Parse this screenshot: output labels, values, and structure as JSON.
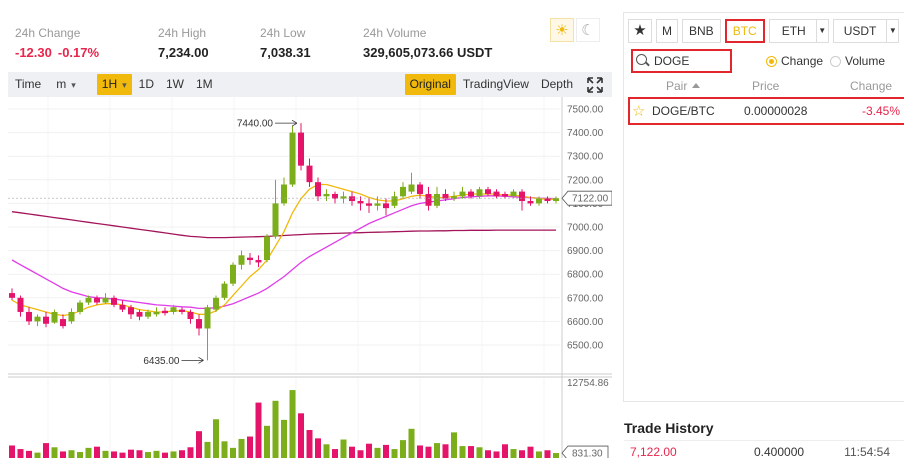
{
  "stats": {
    "change": {
      "label": "24h Change",
      "value": "-12.30",
      "percent": "-0.17%"
    },
    "high": {
      "label": "24h High",
      "value": "7,234.00"
    },
    "low": {
      "label": "24h Low",
      "value": "7,038.31"
    },
    "volume": {
      "label": "24h Volume",
      "value": "329,605,073.66 USDT"
    }
  },
  "theme": {
    "sun_icon": "sun-icon",
    "moon_icon": "moon-icon"
  },
  "toolbar": {
    "time": "Time",
    "minute": "m",
    "hour": "1H",
    "day": "1D",
    "week": "1W",
    "month": "1M",
    "original": "Original",
    "tradingview": "TradingView",
    "depth": "Depth",
    "expand_icon": "expand-icon"
  },
  "chart_data": {
    "type": "candlestick",
    "price_ticks": [
      "7500.00",
      "7400.00",
      "7300.00",
      "7200.00",
      "7100.00",
      "7000.00",
      "6900.00",
      "6800.00",
      "6700.00",
      "6600.00",
      "6500.00"
    ],
    "price_tick_values": [
      7500,
      7400,
      7300,
      7200,
      7100,
      7000,
      6900,
      6800,
      6700,
      6600,
      6500
    ],
    "current_price": "7122.00",
    "current_price_value": 7122,
    "max_marker": "7440.00",
    "max_marker_value": 7440,
    "min_marker": "6435.00",
    "min_marker_value": 6435,
    "volume_ticks": [
      "12754.86"
    ],
    "volume_tick_values": [
      12754.86
    ],
    "volume_current": "831.30",
    "volume_current_value": 831.3,
    "colors": {
      "up": "#7cad1a",
      "down": "#e4146a",
      "ma_fast": "#f0b90b",
      "ma_mid": "#e03ce8",
      "ma_slow": "#a3145a"
    },
    "candles": [
      [
        6720,
        6700,
        6740,
        6690
      ],
      [
        6700,
        6640,
        6710,
        6620
      ],
      [
        6640,
        6600,
        6660,
        6585
      ],
      [
        6600,
        6620,
        6630,
        6580
      ],
      [
        6620,
        6590,
        6640,
        6575
      ],
      [
        6595,
        6640,
        6650,
        6590
      ],
      [
        6610,
        6580,
        6630,
        6570
      ],
      [
        6600,
        6640,
        6655,
        6590
      ],
      [
        6640,
        6680,
        6690,
        6630
      ],
      [
        6680,
        6700,
        6710,
        6670
      ],
      [
        6700,
        6680,
        6710,
        6670
      ],
      [
        6680,
        6700,
        6720,
        6675
      ],
      [
        6700,
        6670,
        6710,
        6660
      ],
      [
        6670,
        6650,
        6690,
        6640
      ],
      [
        6660,
        6630,
        6670,
        6610
      ],
      [
        6640,
        6620,
        6650,
        6605
      ],
      [
        6620,
        6640,
        6650,
        6610
      ],
      [
        6630,
        6640,
        6660,
        6620
      ],
      [
        6645,
        6635,
        6660,
        6625
      ],
      [
        6640,
        6660,
        6670,
        6630
      ],
      [
        6650,
        6640,
        6660,
        6630
      ],
      [
        6640,
        6610,
        6650,
        6590
      ],
      [
        6610,
        6570,
        6630,
        6540
      ],
      [
        6570,
        6660,
        6670,
        6435
      ],
      [
        6650,
        6700,
        6710,
        6640
      ],
      [
        6700,
        6760,
        6770,
        6690
      ],
      [
        6760,
        6840,
        6850,
        6750
      ],
      [
        6840,
        6880,
        6900,
        6820
      ],
      [
        6870,
        6860,
        6890,
        6840
      ],
      [
        6860,
        6850,
        6880,
        6830
      ],
      [
        6860,
        6960,
        6970,
        6850
      ],
      [
        6960,
        7100,
        7200,
        6950
      ],
      [
        7100,
        7180,
        7210,
        7090
      ],
      [
        7180,
        7400,
        7430,
        7170
      ],
      [
        7400,
        7260,
        7440,
        7240
      ],
      [
        7260,
        7190,
        7290,
        7170
      ],
      [
        7190,
        7130,
        7210,
        7110
      ],
      [
        7130,
        7140,
        7160,
        7110
      ],
      [
        7140,
        7120,
        7150,
        7100
      ],
      [
        7120,
        7130,
        7150,
        7100
      ],
      [
        7130,
        7110,
        7150,
        7090
      ],
      [
        7110,
        7100,
        7130,
        7070
      ],
      [
        7100,
        7090,
        7120,
        7060
      ],
      [
        7090,
        7100,
        7130,
        7070
      ],
      [
        7100,
        7080,
        7120,
        7050
      ],
      [
        7090,
        7130,
        7150,
        7080
      ],
      [
        7130,
        7170,
        7190,
        7120
      ],
      [
        7150,
        7180,
        7230,
        7140
      ],
      [
        7180,
        7140,
        7190,
        7120
      ],
      [
        7140,
        7090,
        7170,
        7070
      ],
      [
        7090,
        7140,
        7170,
        7080
      ],
      [
        7140,
        7120,
        7160,
        7110
      ],
      [
        7120,
        7130,
        7150,
        7110
      ],
      [
        7130,
        7150,
        7170,
        7120
      ],
      [
        7150,
        7130,
        7160,
        7120
      ],
      [
        7130,
        7160,
        7170,
        7120
      ],
      [
        7160,
        7140,
        7170,
        7130
      ],
      [
        7150,
        7130,
        7160,
        7120
      ],
      [
        7140,
        7130,
        7150,
        7120
      ],
      [
        7130,
        7150,
        7160,
        7120
      ],
      [
        7150,
        7110,
        7160,
        7070
      ],
      [
        7110,
        7100,
        7130,
        7090
      ],
      [
        7100,
        7120,
        7130,
        7090
      ],
      [
        7120,
        7110,
        7130,
        7100
      ],
      [
        7110,
        7122,
        7130,
        7100
      ]
    ],
    "volumes": [
      2100,
      1500,
      1200,
      900,
      2500,
      1800,
      1100,
      1300,
      1000,
      1700,
      1900,
      1200,
      1100,
      900,
      1400,
      1300,
      1000,
      1200,
      900,
      1100,
      1300,
      1800,
      4500,
      2700,
      6500,
      2800,
      1700,
      3200,
      3600,
      9300,
      5400,
      9600,
      6400,
      11400,
      7500,
      4700,
      3300,
      2300,
      1500,
      3100,
      1900,
      1300,
      2400,
      1700,
      2200,
      1500,
      3000,
      4900,
      2100,
      1900,
      2500,
      2300,
      4300,
      2000,
      2000,
      1800,
      1300,
      1100,
      2300,
      1500,
      1300,
      1900,
      1100,
      1300,
      831
    ],
    "ma_fast": [
      6690,
      6670,
      6660,
      6650,
      6640,
      6630,
      6625,
      6630,
      6645,
      6660,
      6670,
      6675,
      6675,
      6670,
      6660,
      6650,
      6645,
      6640,
      6640,
      6645,
      6645,
      6640,
      6630,
      6630,
      6645,
      6670,
      6710,
      6750,
      6790,
      6820,
      6860,
      6920,
      6980,
      7060,
      7120,
      7160,
      7180,
      7180,
      7170,
      7160,
      7150,
      7140,
      7125,
      7115,
      7110,
      7110,
      7120,
      7130,
      7135,
      7130,
      7125,
      7125,
      7130,
      7135,
      7140,
      7140,
      7140,
      7140,
      7135,
      7135,
      7130,
      7125,
      7120,
      7118,
      7117
    ],
    "ma_mid": [
      6860,
      6840,
      6820,
      6800,
      6780,
      6760,
      6740,
      6725,
      6715,
      6705,
      6700,
      6698,
      6695,
      6690,
      6685,
      6680,
      6675,
      6670,
      6668,
      6665,
      6662,
      6660,
      6655,
      6655,
      6658,
      6665,
      6675,
      6690,
      6705,
      6720,
      6740,
      6765,
      6790,
      6820,
      6850,
      6875,
      6895,
      6915,
      6935,
      6955,
      6975,
      6995,
      7015,
      7030,
      7045,
      7060,
      7075,
      7090,
      7100,
      7105,
      7110,
      7115,
      7120,
      7125,
      7128,
      7130,
      7132,
      7132,
      7130,
      7128,
      7126,
      7124,
      7122,
      7121,
      7120
    ],
    "ma_slow": [
      7065,
      7060,
      7055,
      7050,
      7045,
      7040,
      7035,
      7030,
      7025,
      7020,
      7015,
      7010,
      7005,
      7000,
      6995,
      6990,
      6985,
      6980,
      6975,
      6970,
      6965,
      6960,
      6958,
      6955,
      6955,
      6955,
      6956,
      6957,
      6958,
      6959,
      6960,
      6962,
      6964,
      6966,
      6968,
      6970,
      6971,
      6972,
      6973,
      6974,
      6975,
      6976,
      6977,
      6978,
      6979,
      6980,
      6981,
      6982,
      6983,
      6983,
      6984,
      6984,
      6985,
      6985,
      6986,
      6986,
      6986,
      6987,
      6987,
      6987,
      6987,
      6987,
      6987,
      6987,
      6987
    ]
  },
  "market": {
    "tabs": {
      "favorites_icon": "star-icon",
      "margin": "M",
      "bnb": "BNB",
      "btc": "BTC",
      "eth": "ETH",
      "usdt": "USDT"
    },
    "search": {
      "value": "DOGE"
    },
    "radio": {
      "change": "Change",
      "volume": "Volume"
    },
    "headers": {
      "pair": "Pair",
      "price": "Price",
      "change": "Change"
    },
    "rows": [
      {
        "pair": "DOGE/BTC",
        "price": "0.00000028",
        "change": "-3.45%"
      }
    ]
  },
  "trade_history": {
    "title": "Trade History",
    "rows": [
      {
        "price": "7,122.00",
        "amount": "0.400000",
        "time": "11:54:54"
      }
    ]
  }
}
